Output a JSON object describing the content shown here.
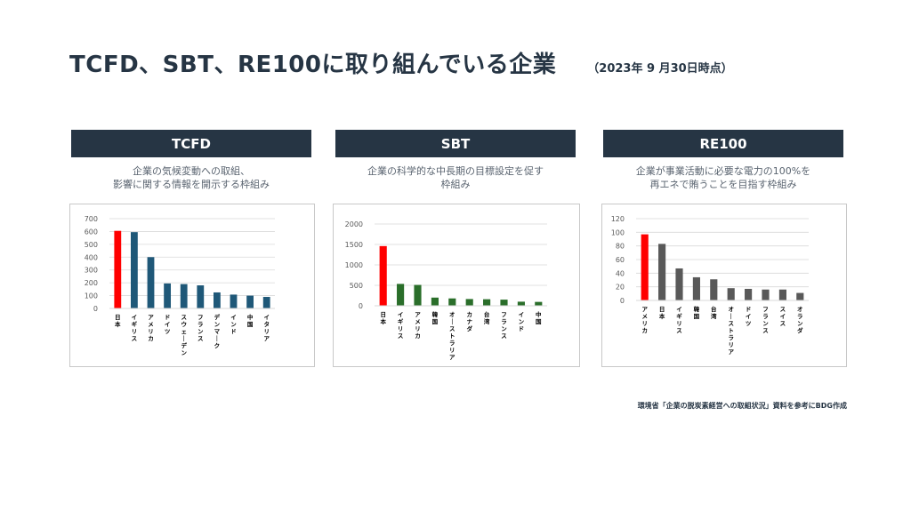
{
  "header": {
    "title": "TCFD、SBT、RE100に取り組んでいる企業",
    "date_note": "（2023年 9 月30日時点）"
  },
  "columns": [
    {
      "name": "TCFD",
      "description": "企業の気候変動への取組、\n影響に関する情報を開示する枠組み"
    },
    {
      "name": "SBT",
      "description": "企業の科学的な中長期の目標設定を促す\n枠組み"
    },
    {
      "name": "RE100",
      "description": "企業が事業活動に必要な電力の100%を\n再エネで賄うことを目指す枠組み"
    }
  ],
  "source_note": "環境省「企業の脱炭素経営への取組状況」資料を参考にBDG作成",
  "chart_data": [
    {
      "type": "bar",
      "categories": [
        "日本",
        "イギリス",
        "アメリカ",
        "ドイツ",
        "スウェーデン",
        "フランス",
        "デンマーク",
        "インド",
        "中国",
        "イタリア"
      ],
      "values": [
        605,
        595,
        400,
        195,
        190,
        180,
        125,
        108,
        100,
        90
      ],
      "ylim": [
        0,
        700
      ],
      "yticks": [
        0,
        100,
        200,
        300,
        400,
        500,
        600,
        700
      ],
      "grid": true,
      "colors": {
        "highlight": "#ff0000",
        "default": "#1f5878"
      },
      "highlight_index": 0
    },
    {
      "type": "bar",
      "categories": [
        "日本",
        "イギリス",
        "アメリカ",
        "韓国",
        "オーストラリア",
        "カナダ",
        "台湾",
        "フランス",
        "インド",
        "中国"
      ],
      "values": [
        1460,
        535,
        510,
        200,
        180,
        165,
        160,
        150,
        100,
        95
      ],
      "ylim": [
        0,
        2000
      ],
      "yticks": [
        0,
        500,
        1000,
        1500,
        2000
      ],
      "grid": true,
      "colors": {
        "highlight": "#ff0000",
        "default": "#2a6e2a"
      },
      "highlight_index": 0
    },
    {
      "type": "bar",
      "categories": [
        "アメリカ",
        "日本",
        "イギリス",
        "韓国",
        "台湾",
        "オーストラリア",
        "ドイツ",
        "フランス",
        "スイス",
        "オランダ"
      ],
      "values": [
        97,
        83,
        47,
        34,
        31,
        18,
        17,
        16,
        16,
        11
      ],
      "ylim": [
        0,
        120
      ],
      "yticks": [
        0,
        20,
        40,
        60,
        80,
        100,
        120
      ],
      "grid": true,
      "colors": {
        "highlight": "#ff0000",
        "default": "#595959"
      },
      "highlight_index": 0
    }
  ]
}
